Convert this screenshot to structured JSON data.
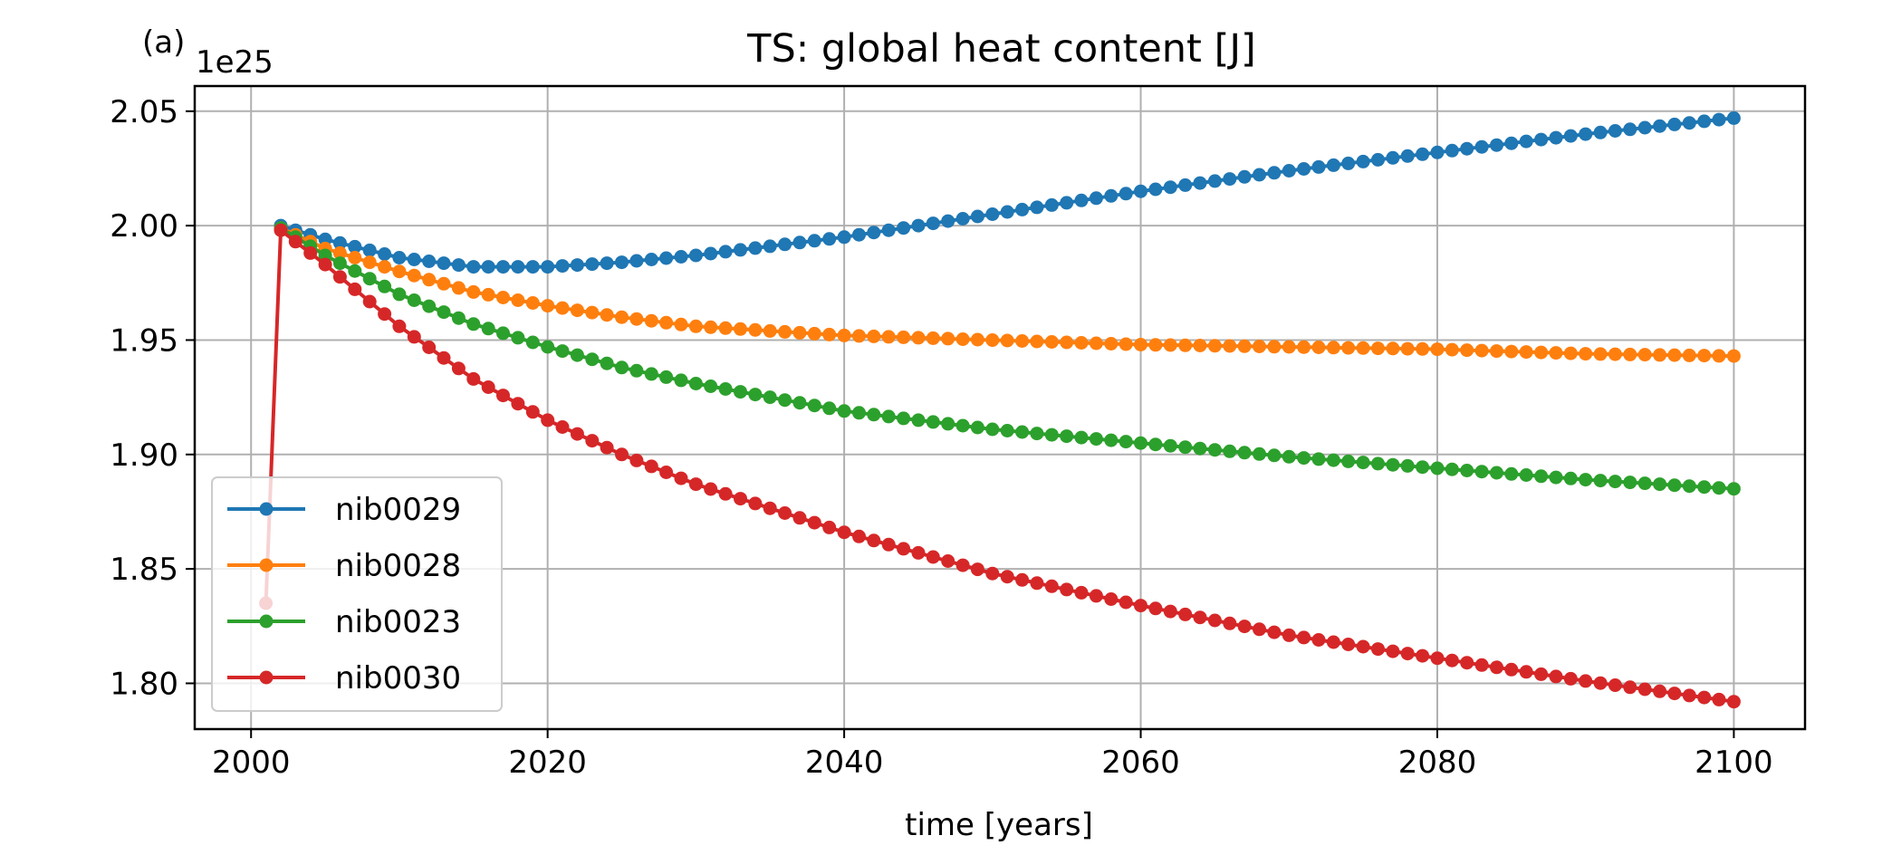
{
  "chart_data": {
    "type": "line",
    "title": "TS: global heat content [J]",
    "panel_label": "(a)",
    "xlabel": "time [years]",
    "ylabel": "",
    "y_offset_label": "1e25",
    "xlim": [
      1996.2,
      2104.8
    ],
    "ylim": [
      1.78,
      2.061
    ],
    "x_ticks": [
      2000,
      2020,
      2040,
      2060,
      2080,
      2100
    ],
    "x_tick_labels": [
      "2000",
      "2020",
      "2040",
      "2060",
      "2080",
      "2100"
    ],
    "y_ticks": [
      1.8,
      1.85,
      1.9,
      1.95,
      2.0,
      2.05
    ],
    "y_tick_labels": [
      "1.80",
      "1.85",
      "1.90",
      "1.95",
      "2.00",
      "2.05"
    ],
    "grid": true,
    "legend_position": "lower-left",
    "series": [
      {
        "name": "nib0029",
        "color": "#1f77b4",
        "x_start": 2002,
        "x_end": 2100,
        "anchors": [
          [
            2002,
            2.0
          ],
          [
            2005,
            1.994
          ],
          [
            2010,
            1.986
          ],
          [
            2015,
            1.982
          ],
          [
            2020,
            1.982
          ],
          [
            2025,
            1.984
          ],
          [
            2030,
            1.987
          ],
          [
            2040,
            1.995
          ],
          [
            2050,
            2.005
          ],
          [
            2060,
            2.015
          ],
          [
            2070,
            2.024
          ],
          [
            2080,
            2.032
          ],
          [
            2090,
            2.04
          ],
          [
            2100,
            2.047
          ]
        ]
      },
      {
        "name": "nib0028",
        "color": "#ff7f0e",
        "x_start": 2002,
        "x_end": 2100,
        "anchors": [
          [
            2002,
            1.999
          ],
          [
            2005,
            1.99
          ],
          [
            2010,
            1.98
          ],
          [
            2015,
            1.971
          ],
          [
            2020,
            1.965
          ],
          [
            2025,
            1.96
          ],
          [
            2030,
            1.956
          ],
          [
            2040,
            1.952
          ],
          [
            2050,
            1.95
          ],
          [
            2060,
            1.948
          ],
          [
            2070,
            1.947
          ],
          [
            2080,
            1.946
          ],
          [
            2090,
            1.944
          ],
          [
            2100,
            1.943
          ]
        ]
      },
      {
        "name": "nib0023",
        "color": "#2ca02c",
        "x_start": 2002,
        "x_end": 2100,
        "anchors": [
          [
            2002,
            1.999
          ],
          [
            2005,
            1.987
          ],
          [
            2010,
            1.97
          ],
          [
            2015,
            1.957
          ],
          [
            2020,
            1.947
          ],
          [
            2025,
            1.938
          ],
          [
            2030,
            1.931
          ],
          [
            2040,
            1.919
          ],
          [
            2050,
            1.911
          ],
          [
            2060,
            1.905
          ],
          [
            2070,
            1.899
          ],
          [
            2080,
            1.894
          ],
          [
            2090,
            1.889
          ],
          [
            2100,
            1.885
          ]
        ]
      },
      {
        "name": "nib0030",
        "color": "#d62728",
        "x_start": 2001,
        "x_end": 2100,
        "anchors": [
          [
            2001,
            1.835
          ],
          [
            2002,
            1.998
          ],
          [
            2005,
            1.983
          ],
          [
            2010,
            1.956
          ],
          [
            2015,
            1.933
          ],
          [
            2020,
            1.915
          ],
          [
            2025,
            1.9
          ],
          [
            2030,
            1.887
          ],
          [
            2040,
            1.866
          ],
          [
            2050,
            1.848
          ],
          [
            2060,
            1.834
          ],
          [
            2070,
            1.821
          ],
          [
            2080,
            1.811
          ],
          [
            2090,
            1.801
          ],
          [
            2100,
            1.792
          ]
        ]
      }
    ]
  }
}
